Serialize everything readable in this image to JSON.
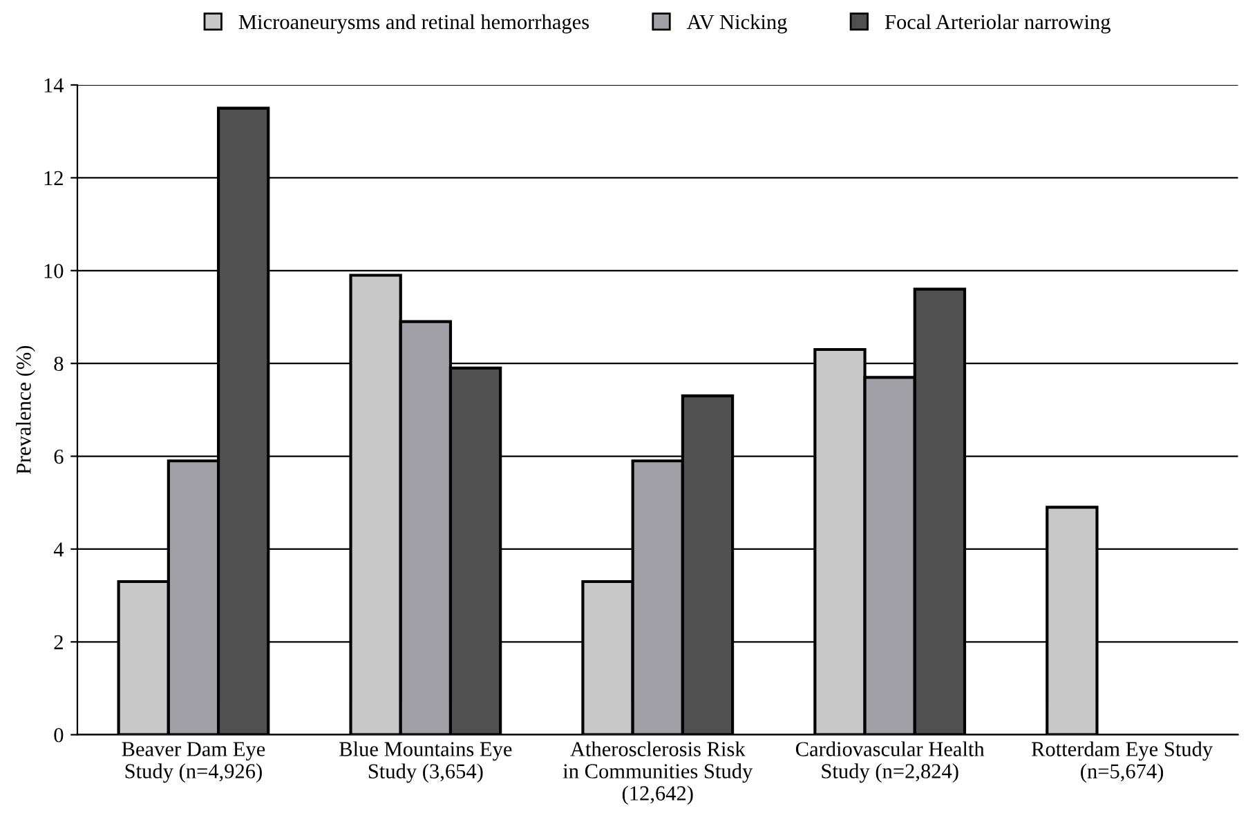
{
  "chart_data": {
    "type": "bar",
    "ylabel": "Prevalence (%)",
    "categories": [
      "Beaver Dam Eye\nStudy (n=4,926)",
      "Blue Mountains Eye\nStudy (3,654)",
      "Atherosclerosis Risk\nin Communities Study\n(12,642)",
      "Cardiovascular Health\nStudy (n=2,824)",
      "Rotterdam Eye Study\n(n=5,674)"
    ],
    "series": [
      {
        "name": "Microaneurysms and retinal hemorrhages",
        "color": "#c8c8c8",
        "values": [
          3.3,
          9.9,
          3.3,
          8.3,
          4.9
        ]
      },
      {
        "name": "AV Nicking",
        "color": "#a0a0a6",
        "values": [
          5.9,
          8.9,
          5.9,
          7.7,
          null
        ]
      },
      {
        "name": "Focal Arteriolar narrowing",
        "color": "#505050",
        "values": [
          13.5,
          7.9,
          7.3,
          9.6,
          null
        ]
      }
    ],
    "ylim": [
      0,
      14
    ],
    "yticks": [
      0,
      2,
      4,
      6,
      8,
      10,
      12,
      14
    ],
    "grid": "y",
    "legend": "top"
  }
}
